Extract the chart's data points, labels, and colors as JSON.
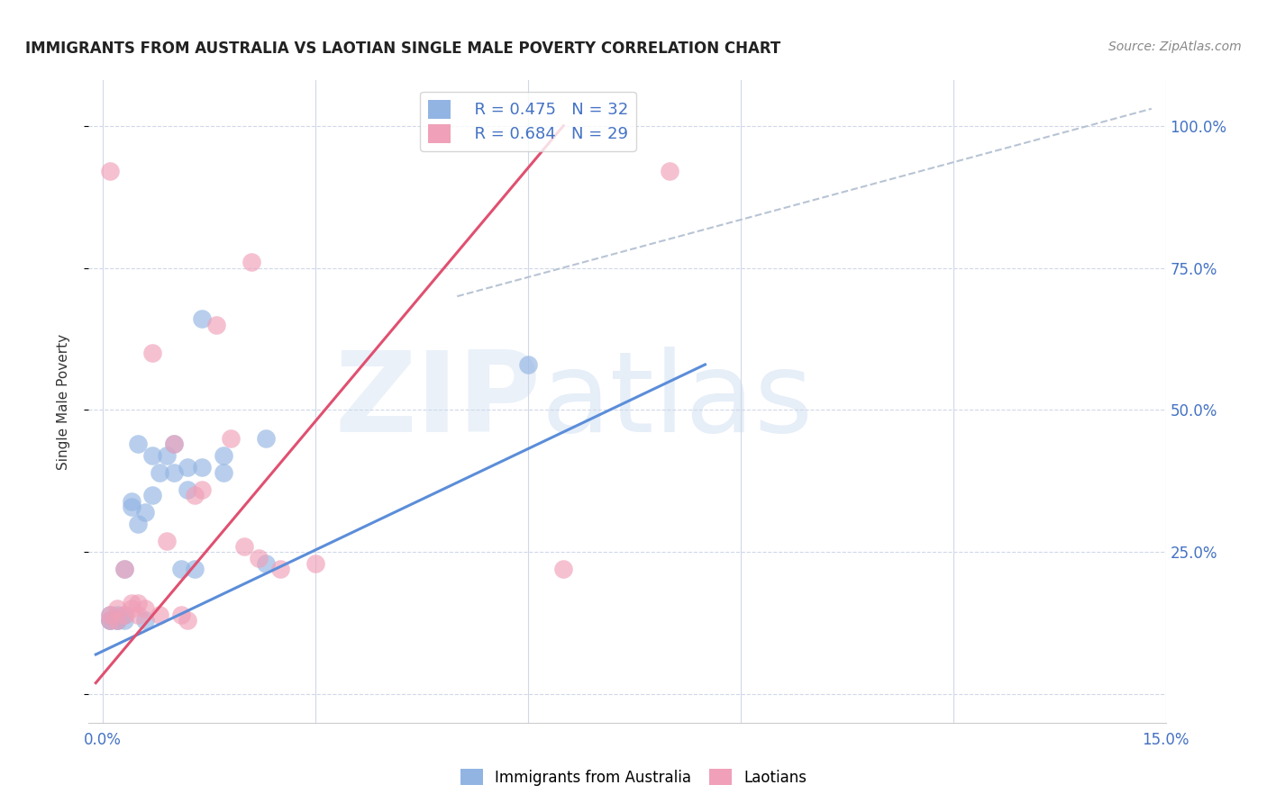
{
  "title": "IMMIGRANTS FROM AUSTRALIA VS LAOTIAN SINGLE MALE POVERTY CORRELATION CHART",
  "source": "Source: ZipAtlas.com",
  "ylabel": "Single Male Poverty",
  "y_ticks": [
    0.0,
    0.25,
    0.5,
    0.75,
    1.0
  ],
  "y_tick_labels_right": [
    "",
    "25.0%",
    "50.0%",
    "75.0%",
    "100.0%"
  ],
  "x_ticks": [
    0.0,
    0.03,
    0.06,
    0.09,
    0.12,
    0.15
  ],
  "x_tick_labels": [
    "0.0%",
    "",
    "",
    "",
    "",
    "15.0%"
  ],
  "xlim": [
    -0.002,
    0.15
  ],
  "ylim": [
    -0.05,
    1.08
  ],
  "blue_color": "#92b4e3",
  "pink_color": "#f0a0b8",
  "blue_line_color": "#5b8dd9",
  "pink_line_color": "#e05070",
  "gray_dash_color": "#b8c4d4",
  "watermark_zip": "ZIP",
  "watermark_atlas": "atlas",
  "legend_r_blue": "R = 0.475",
  "legend_n_blue": "N = 32",
  "legend_r_pink": "R = 0.684",
  "legend_n_pink": "N = 29",
  "legend_label_blue": "Immigrants from Australia",
  "legend_label_pink": "Laotians",
  "blue_scatter_x": [
    0.001,
    0.001,
    0.001,
    0.002,
    0.002,
    0.002,
    0.003,
    0.003,
    0.003,
    0.004,
    0.004,
    0.005,
    0.005,
    0.006,
    0.006,
    0.007,
    0.007,
    0.008,
    0.009,
    0.01,
    0.01,
    0.011,
    0.012,
    0.012,
    0.013,
    0.014,
    0.014,
    0.017,
    0.017,
    0.023,
    0.023,
    0.06
  ],
  "blue_scatter_y": [
    0.13,
    0.14,
    0.13,
    0.13,
    0.13,
    0.14,
    0.13,
    0.14,
    0.22,
    0.33,
    0.34,
    0.44,
    0.3,
    0.13,
    0.32,
    0.35,
    0.42,
    0.39,
    0.42,
    0.39,
    0.44,
    0.22,
    0.36,
    0.4,
    0.22,
    0.4,
    0.66,
    0.39,
    0.42,
    0.23,
    0.45,
    0.58
  ],
  "pink_scatter_x": [
    0.001,
    0.001,
    0.001,
    0.002,
    0.002,
    0.003,
    0.003,
    0.004,
    0.004,
    0.005,
    0.005,
    0.006,
    0.007,
    0.008,
    0.009,
    0.01,
    0.011,
    0.012,
    0.013,
    0.014,
    0.016,
    0.018,
    0.02,
    0.021,
    0.022,
    0.025,
    0.03,
    0.065,
    0.08
  ],
  "pink_scatter_y": [
    0.13,
    0.14,
    0.92,
    0.13,
    0.15,
    0.14,
    0.22,
    0.15,
    0.16,
    0.14,
    0.16,
    0.15,
    0.6,
    0.14,
    0.27,
    0.44,
    0.14,
    0.13,
    0.35,
    0.36,
    0.65,
    0.45,
    0.26,
    0.76,
    0.24,
    0.22,
    0.23,
    0.22,
    0.92
  ],
  "blue_line_x": [
    -0.001,
    0.085
  ],
  "blue_line_y": [
    0.07,
    0.58
  ],
  "pink_line_x": [
    -0.001,
    0.065
  ],
  "pink_line_y": [
    0.02,
    1.0
  ],
  "diag_line_x": [
    0.05,
    0.148
  ],
  "diag_line_y": [
    0.7,
    1.03
  ]
}
